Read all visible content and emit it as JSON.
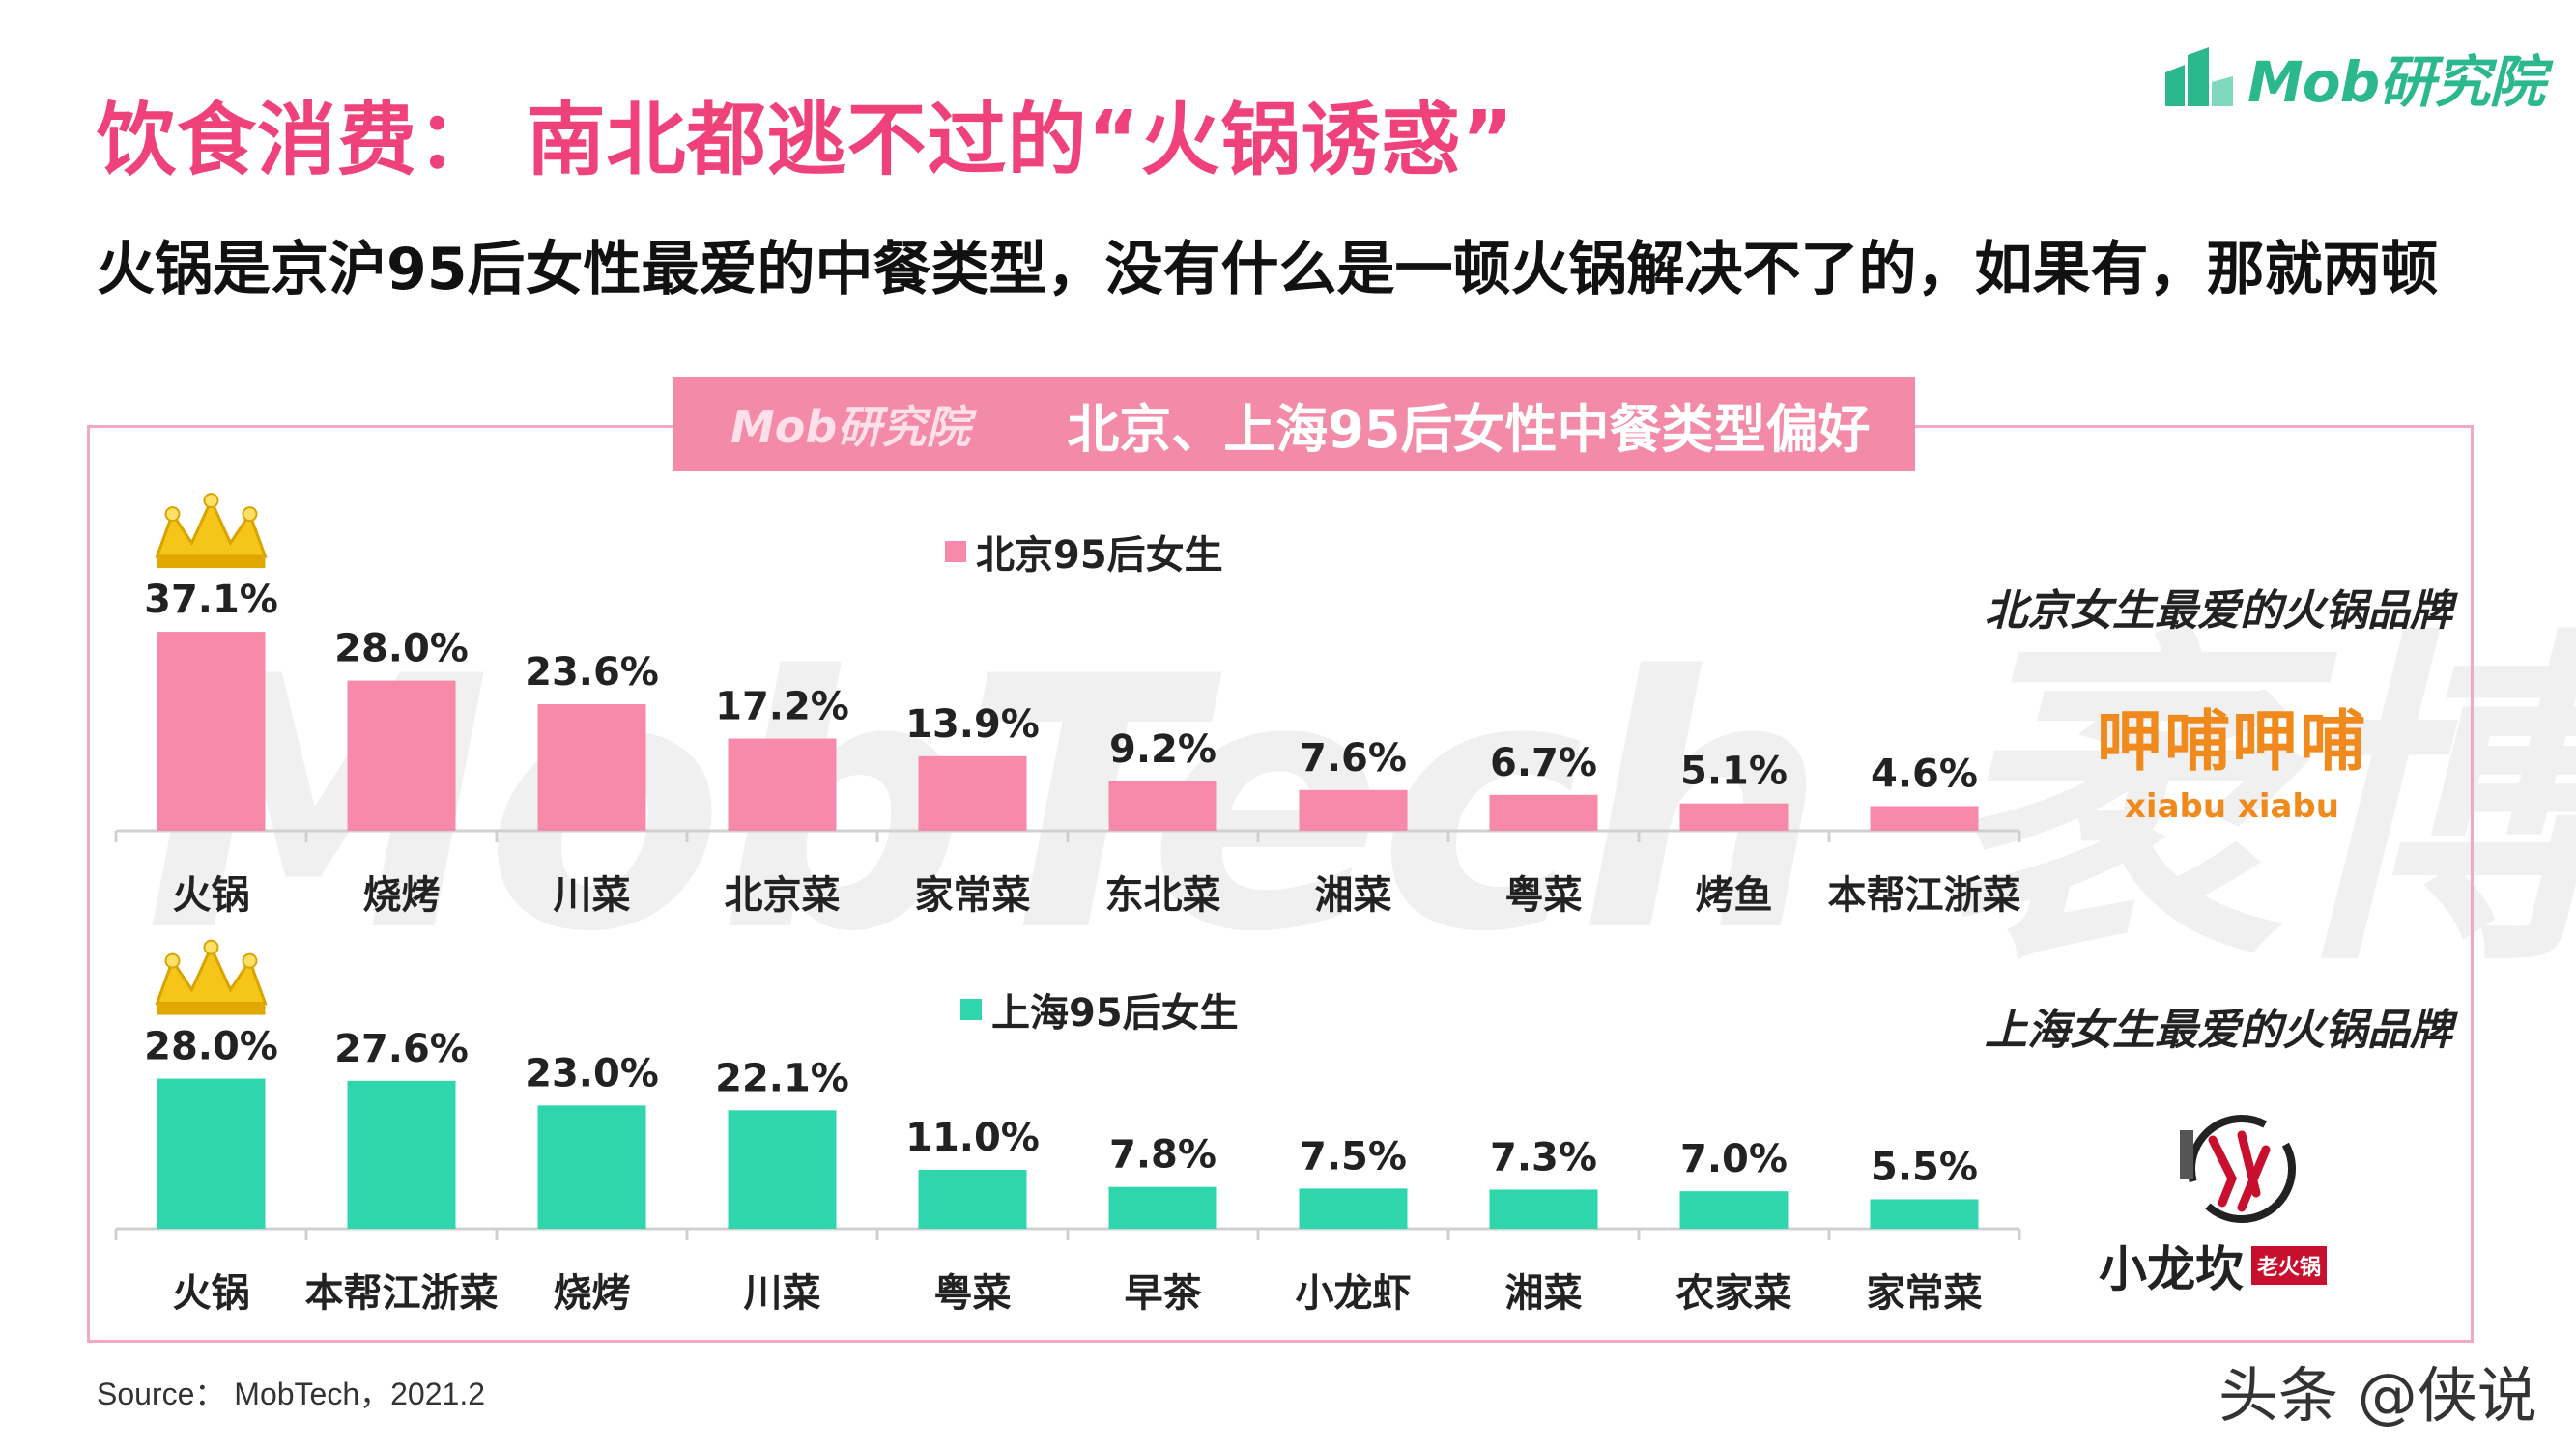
{
  "header": {
    "title": "饮食消费：  南北都逃不过的“火锅诱惑”",
    "subtitle": "火锅是京沪95后女性最爱的中餐类型，没有什么是一顿火锅解决不了的，如果有，那就两顿",
    "logo_text": "Mob研究院"
  },
  "panel": {
    "header_logo": "Mob研究院",
    "header_title": "北京、上海95后女性中餐类型偏好",
    "watermark": "MobTech 袤博"
  },
  "brands": {
    "beijing_title": "北京女生最爱的火锅品牌",
    "beijing_brand": "呷哺呷哺",
    "beijing_brand_sub": "xiabu xiabu",
    "shanghai_title": "上海女生最爱的火锅品牌",
    "shanghai_brand": "小龙坎",
    "shanghai_brand_tag": "老火锅"
  },
  "source": "Source：  MobTech，2021.2",
  "footer_mark": "头条 @侠说",
  "colors": {
    "title_pink": "#f0427a",
    "beijing_bar": "#f78aab",
    "shanghai_bar": "#2fd6ab",
    "panel_border": "#f4a9c1",
    "crown": "#f5c518"
  },
  "chart_data": [
    {
      "type": "bar",
      "series": [
        {
          "name": "北京95后女生",
          "color": "#f78aab",
          "values": [
            37.1,
            28.0,
            23.6,
            17.2,
            13.9,
            9.2,
            7.6,
            6.7,
            5.1,
            4.6
          ]
        }
      ],
      "categories": [
        "火锅",
        "烧烤",
        "川菜",
        "北京菜",
        "家常菜",
        "东北菜",
        "湘菜",
        "粤菜",
        "烤鱼",
        "本帮江浙菜"
      ],
      "labels": [
        "37.1%",
        "28.0%",
        "23.6%",
        "17.2%",
        "13.9%",
        "9.2%",
        "7.6%",
        "6.7%",
        "5.1%",
        "4.6%"
      ],
      "unit": "%",
      "ylim": [
        0,
        40
      ]
    },
    {
      "type": "bar",
      "series": [
        {
          "name": "上海95后女生",
          "color": "#2fd6ab",
          "values": [
            28.0,
            27.6,
            23.0,
            22.1,
            11.0,
            7.8,
            7.5,
            7.3,
            7.0,
            5.5
          ]
        }
      ],
      "categories": [
        "火锅",
        "本帮江浙菜",
        "烧烤",
        "川菜",
        "粤菜",
        "早茶",
        "小龙虾",
        "湘菜",
        "农家菜",
        "家常菜"
      ],
      "labels": [
        "28.0%",
        "27.6%",
        "23.0%",
        "22.1%",
        "11.0%",
        "7.8%",
        "7.5%",
        "7.3%",
        "7.0%",
        "5.5%"
      ],
      "unit": "%",
      "ylim": [
        0,
        40
      ]
    }
  ]
}
